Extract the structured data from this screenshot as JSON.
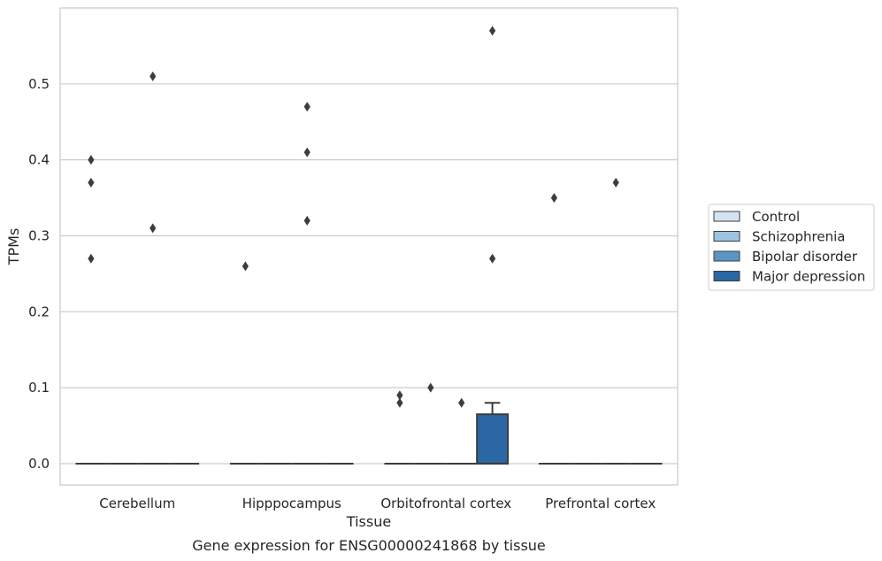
{
  "chart_data": {
    "type": "boxplot",
    "xlabel": "Tissue",
    "ylabel": "TPMs",
    "caption": "Gene expression for ENSG00000241868 by tissue",
    "ylim": [
      -0.028,
      0.6
    ],
    "yticks": [
      0.0,
      0.1,
      0.2,
      0.3,
      0.4,
      0.5
    ],
    "ytick_labels": [
      "0.0",
      "0.1",
      "0.2",
      "0.3",
      "0.4",
      "0.5"
    ],
    "grid": "horizontal",
    "legend_placement": "right",
    "categories": [
      "Cerebellum",
      "Hipppocampus",
      "Orbitofrontal cortex",
      "Prefrontal cortex"
    ],
    "series": [
      {
        "name": "Control",
        "color": "#d4e3f2",
        "boxes": [
          {
            "q1": 0,
            "median": 0,
            "q3": 0,
            "whisker_low": 0,
            "whisker_high": 0,
            "outliers": [
              0.27,
              0.37,
              0.4
            ]
          },
          {
            "q1": 0,
            "median": 0,
            "q3": 0,
            "whisker_low": 0,
            "whisker_high": 0,
            "outliers": [
              0.26
            ]
          },
          {
            "q1": 0,
            "median": 0,
            "q3": 0,
            "whisker_low": 0,
            "whisker_high": 0,
            "outliers": [
              0.08,
              0.09
            ]
          },
          {
            "q1": 0,
            "median": 0,
            "q3": 0,
            "whisker_low": 0,
            "whisker_high": 0,
            "outliers": [
              0.35
            ]
          }
        ]
      },
      {
        "name": "Schizophrenia",
        "color": "#9dc3df",
        "boxes": [
          {
            "q1": 0,
            "median": 0,
            "q3": 0,
            "whisker_low": 0,
            "whisker_high": 0,
            "outliers": []
          },
          {
            "q1": 0,
            "median": 0,
            "q3": 0,
            "whisker_low": 0,
            "whisker_high": 0,
            "outliers": []
          },
          {
            "q1": 0,
            "median": 0,
            "q3": 0,
            "whisker_low": 0,
            "whisker_high": 0,
            "outliers": [
              0.1
            ]
          },
          {
            "q1": 0,
            "median": 0,
            "q3": 0,
            "whisker_low": 0,
            "whisker_high": 0,
            "outliers": []
          }
        ]
      },
      {
        "name": "Bipolar disorder",
        "color": "#5a96c5",
        "boxes": [
          {
            "q1": 0,
            "median": 0,
            "q3": 0,
            "whisker_low": 0,
            "whisker_high": 0,
            "outliers": [
              0.31,
              0.51
            ]
          },
          {
            "q1": 0,
            "median": 0,
            "q3": 0,
            "whisker_low": 0,
            "whisker_high": 0,
            "outliers": [
              0.32,
              0.41,
              0.47
            ]
          },
          {
            "q1": 0,
            "median": 0,
            "q3": 0,
            "whisker_low": 0,
            "whisker_high": 0,
            "outliers": [
              0.08
            ]
          },
          {
            "q1": 0,
            "median": 0,
            "q3": 0,
            "whisker_low": 0,
            "whisker_high": 0,
            "outliers": [
              0.37
            ]
          }
        ]
      },
      {
        "name": "Major depression",
        "color": "#2a67a4",
        "boxes": [
          {
            "q1": 0,
            "median": 0,
            "q3": 0,
            "whisker_low": 0,
            "whisker_high": 0,
            "outliers": []
          },
          {
            "q1": 0,
            "median": 0,
            "q3": 0,
            "whisker_low": 0,
            "whisker_high": 0,
            "outliers": []
          },
          {
            "q1": 0,
            "median": 0,
            "q3": 0.065,
            "whisker_low": 0,
            "whisker_high": 0.08,
            "outliers": [
              0.27,
              0.57
            ]
          },
          {
            "q1": 0,
            "median": 0,
            "q3": 0,
            "whisker_low": 0,
            "whisker_high": 0,
            "outliers": []
          }
        ]
      }
    ]
  }
}
